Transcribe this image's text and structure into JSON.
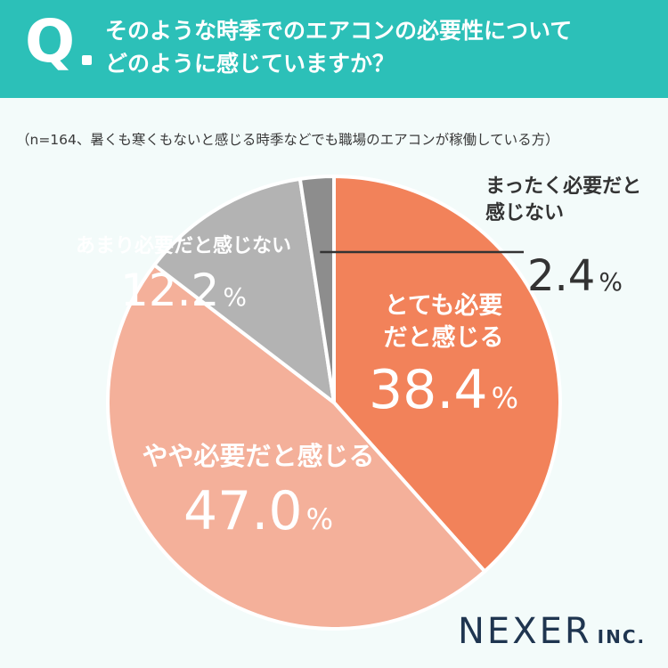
{
  "header": {
    "q_label": "Q",
    "question_lines": [
      "そのような時季でのエアコンの必要性について",
      "どのように感じていますか？"
    ]
  },
  "note": "（n=164、暑くも寒くもないと感じる時季などでも職場のエアコンが稼働している方）",
  "brand": {
    "name": "NEXER",
    "suffix": "INC."
  },
  "colors": {
    "header_bg": "#2cc0b8",
    "slice_1": "#f2825a",
    "slice_2": "#f4b09a",
    "slice_3": "#b3b3b3",
    "slice_4": "#8d8d8d",
    "brand": "#1f3550"
  },
  "chart_data": {
    "type": "pie",
    "categories": [
      "とても必要だと感じる",
      "やや必要だと感じる",
      "あまり必要だと感じない",
      "まったく必要だと感じない"
    ],
    "values": [
      38.4,
      47.0,
      12.2,
      2.4
    ],
    "value_labels": [
      "38.4",
      "47.0",
      "12.2",
      "2.4"
    ],
    "unit": "%",
    "label_lines": [
      [
        "とても必要",
        "だと感じる"
      ],
      [
        "やや必要だと感じる"
      ],
      [
        "あまり必要だと感じない"
      ],
      [
        "まったく必要だと",
        "感じない"
      ]
    ],
    "start_angle": "12 o'clock",
    "direction": "clockwise",
    "legend": "none"
  }
}
